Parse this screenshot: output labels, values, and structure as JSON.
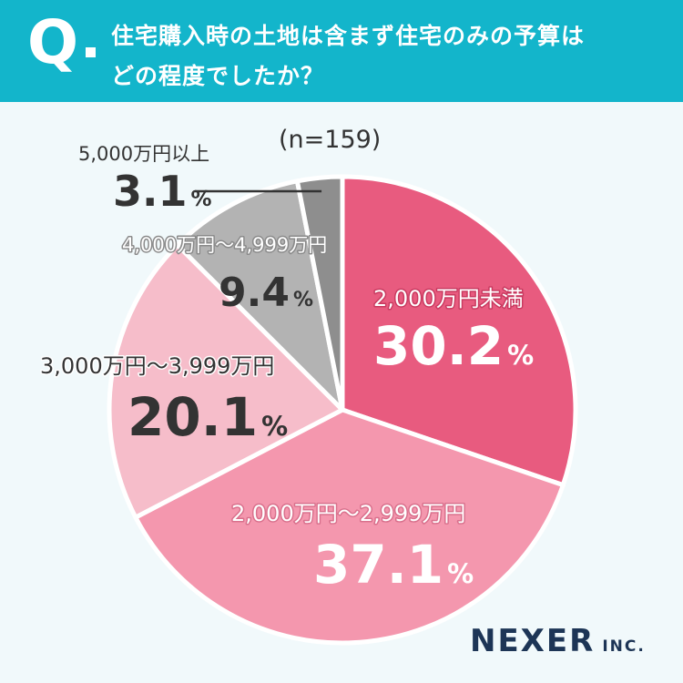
{
  "header": {
    "q_mark": "Q",
    "question_line1": "住宅購入時の土地は含まず住宅のみの予算は",
    "question_line2": "どの程度でしたか？",
    "accent_color": "#13b5cb"
  },
  "sample": {
    "label": "(n=159)"
  },
  "chart_data": {
    "type": "pie",
    "start": "12 o'clock",
    "direction": "clockwise",
    "unit": "%",
    "slices": [
      {
        "label": "2,000万円未満",
        "value": 30.2,
        "color": "#e85b7f"
      },
      {
        "label": "2,000万円〜2,999万円",
        "value": 37.1,
        "color": "#f497ae"
      },
      {
        "label": "3,000万円〜3,999万円",
        "value": 20.1,
        "color": "#f6bdca"
      },
      {
        "label": "4,000万円〜4,999万円",
        "value": 9.4,
        "color": "#b3b3b3"
      },
      {
        "label": "5,000万円以上",
        "value": 3.1,
        "color": "#8e8e8e"
      }
    ]
  },
  "logo": {
    "name": "NEXER",
    "suffix": "INC."
  }
}
